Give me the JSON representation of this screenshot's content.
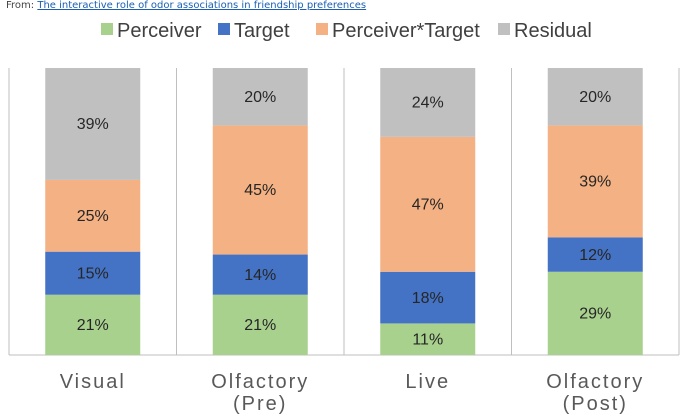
{
  "source": {
    "prefix": "From:",
    "link_text": "The interactive role of odor associations in friendship preferences"
  },
  "chart_data": {
    "type": "bar",
    "stacked": true,
    "categories": [
      [
        "Visual"
      ],
      [
        "Olfactory",
        "(Pre)"
      ],
      [
        "Live"
      ],
      [
        "Olfactory",
        "(Post)"
      ]
    ],
    "series": [
      {
        "name": "Perceiver",
        "color": "#a9d18e",
        "values": [
          21,
          21,
          11,
          29
        ]
      },
      {
        "name": "Target",
        "color": "#4472c4",
        "values": [
          15,
          14,
          18,
          12
        ]
      },
      {
        "name": "Perceiver*Target",
        "color": "#f4b183",
        "values": [
          25,
          45,
          47,
          39
        ]
      },
      {
        "name": "Residual",
        "color": "#c0c0c0",
        "values": [
          39,
          20,
          24,
          20
        ]
      }
    ],
    "ylim": [
      0,
      100
    ],
    "value_suffix": "%",
    "legend_position": "top",
    "grid": false,
    "divider_color": "#bfbfbf"
  }
}
